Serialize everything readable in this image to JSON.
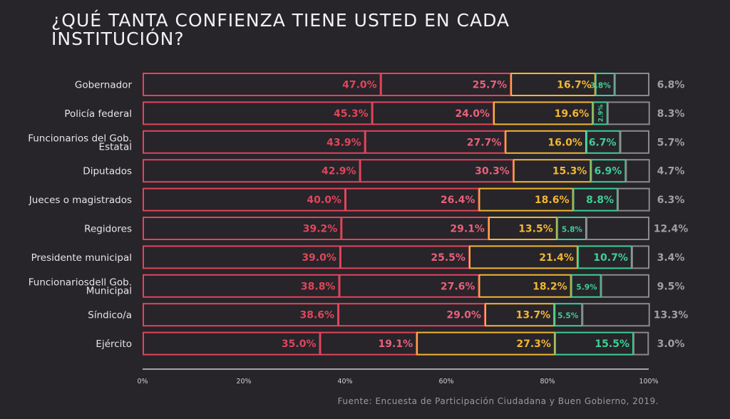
{
  "title": "¿QUÉ TANTA CONFIENZA TIENE USTED EN CADA INSTITUCIÓN?",
  "source": "Fuente: Encuesta de Participación Ciudadana y Buen Gobierno, 2019.",
  "colors": {
    "background": "#27242a",
    "series": [
      "#e0455a",
      "#e8607a",
      "#f2b632",
      "#3ecf95",
      "#8a8a8a"
    ],
    "outline": [
      "#e0455a",
      "#e0455a",
      "#f2b632",
      "#3ecf95",
      "#8a8a8a"
    ],
    "text": [
      "#e0455a",
      "#e8607a",
      "#f2b632",
      "#3ecf95",
      "#a0a0a0"
    ],
    "category_label": "#e6e6e6",
    "axis": "#cfcfcf"
  },
  "chart_data": {
    "type": "bar",
    "stacked": true,
    "orientation": "horizontal",
    "categories": [
      "Gobernador",
      "Policía federal",
      "Funcionarios del Gob. Estatal",
      "Diputados",
      "Jueces o magistrados",
      "Regidores",
      "Presidente municipal",
      "Funcionariosdell Gob. Municipal",
      "Síndico/a",
      "Ejército"
    ],
    "category_lines": [
      [
        "Gobernador"
      ],
      [
        "Policía federal"
      ],
      [
        "Funcionarios del Gob.",
        "Estatal"
      ],
      [
        "Diputados"
      ],
      [
        "Jueces o magistrados"
      ],
      [
        "Regidores"
      ],
      [
        "Presidente municipal"
      ],
      [
        "Funcionariosdell Gob.",
        "Municipal"
      ],
      [
        "Síndico/a"
      ],
      [
        "Ejército"
      ]
    ],
    "series": [
      {
        "values": [
          47.0,
          45.3,
          43.9,
          42.9,
          40.0,
          39.2,
          39.0,
          38.8,
          38.6,
          35.0
        ],
        "labels": [
          "47.0%",
          "45.3%",
          "43.9%",
          "42.9%",
          "40.0%",
          "39.2%",
          "39.0%",
          "38.8%",
          "38.6%",
          "35.0%"
        ]
      },
      {
        "values": [
          25.7,
          24.0,
          27.7,
          30.3,
          26.4,
          29.1,
          25.5,
          27.6,
          29.0,
          19.1
        ],
        "labels": [
          "25.7%",
          "24.0%",
          "27.7%",
          "30.3%",
          "26.4%",
          "29.1%",
          "25.5%",
          "27.6%",
          "29.0%",
          "19.1%"
        ]
      },
      {
        "values": [
          16.7,
          19.6,
          16.0,
          15.3,
          18.6,
          13.5,
          21.4,
          18.2,
          13.7,
          27.3
        ],
        "labels": [
          "16.7%",
          "19.6%",
          "16.0%",
          "15.3%",
          "18.6%",
          "13.5%",
          "21.4%",
          "18.2%",
          "13.7%",
          "27.3%"
        ]
      },
      {
        "values": [
          3.8,
          2.9,
          6.7,
          6.9,
          8.8,
          5.8,
          10.7,
          5.9,
          5.5,
          15.5
        ],
        "labels": [
          "3.8%",
          "2.9%",
          "6.7%",
          "6.9%",
          "8.8%",
          "5.8%",
          "10.7%",
          "5.9%",
          "5.5%",
          "15.5%"
        ]
      },
      {
        "values": [
          6.8,
          8.3,
          5.7,
          4.7,
          6.3,
          12.4,
          3.4,
          9.5,
          13.3,
          3.0
        ],
        "labels": [
          "6.8%",
          "8.3%",
          "5.7%",
          "4.7%",
          "6.3%",
          "12.4%",
          "3.4%",
          "9.5%",
          "13.3%",
          "3.0%"
        ]
      }
    ],
    "xlim": [
      0,
      100
    ],
    "xticks": [
      "0%",
      "20%",
      "40%",
      "60%",
      "80%",
      "100%"
    ],
    "tick_values": [
      0,
      20,
      40,
      60,
      80,
      100
    ],
    "grid": false,
    "legend": "none"
  }
}
